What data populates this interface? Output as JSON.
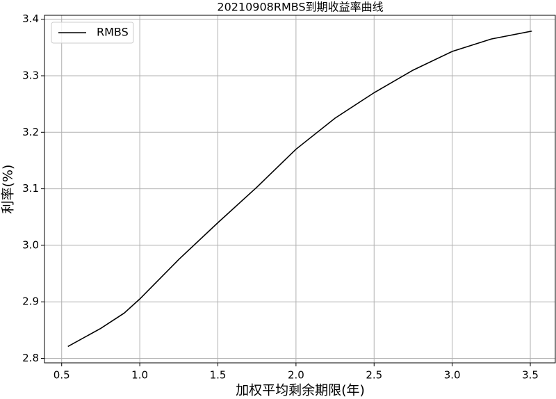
{
  "chart_data": {
    "type": "line",
    "title": "20210908RMBS到期收益率曲线",
    "xlabel": "加权平均剩余期限(年)",
    "ylabel": "利率(%)",
    "x": [
      0.54,
      0.75,
      0.9,
      1.0,
      1.25,
      1.5,
      1.75,
      2.0,
      2.25,
      2.5,
      2.75,
      3.0,
      3.25,
      3.51
    ],
    "series": [
      {
        "name": "RMBS",
        "color": "#000000",
        "values": [
          2.821,
          2.853,
          2.88,
          2.905,
          2.975,
          3.04,
          3.103,
          3.17,
          3.225,
          3.27,
          3.31,
          3.343,
          3.365,
          3.379
        ]
      }
    ],
    "xlim": [
      0.39,
      3.66
    ],
    "ylim": [
      2.792,
      3.407
    ],
    "xticks": [
      0.5,
      {
        "value": 1,
        "label": "1.0"
      },
      1.5,
      {
        "value": 2,
        "label": "2.0"
      },
      2.5,
      {
        "value": 3,
        "label": "3.0"
      },
      3.5
    ],
    "yticks": [
      2.8,
      2.9,
      {
        "value": 3,
        "label": "3.0"
      },
      3.1,
      3.2,
      3.3,
      3.4
    ],
    "grid": true,
    "legend": "upper left"
  }
}
